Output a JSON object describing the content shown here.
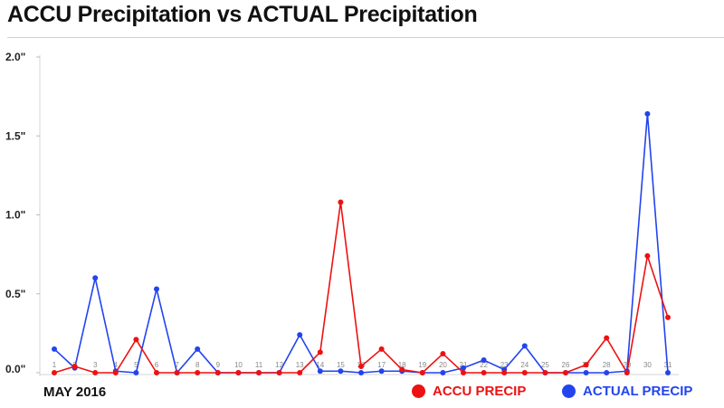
{
  "chart_data": {
    "type": "line",
    "title": "ACCU Precipitation vs ACTUAL Precipitation",
    "xlabel": "MAY 2016",
    "ylabel": "",
    "x": [
      1,
      2,
      3,
      4,
      5,
      6,
      7,
      8,
      9,
      10,
      11,
      12,
      13,
      14,
      15,
      16,
      17,
      18,
      19,
      20,
      21,
      22,
      23,
      24,
      25,
      26,
      27,
      28,
      29,
      30,
      31
    ],
    "ylim": [
      0,
      2.0
    ],
    "yticks": [
      {
        "value": 0.0,
        "label": "0.0\""
      },
      {
        "value": 0.5,
        "label": "0.5\""
      },
      {
        "value": 1.0,
        "label": "1.0\""
      },
      {
        "value": 1.5,
        "label": "1.5\""
      },
      {
        "value": 2.0,
        "label": "2.0\""
      }
    ],
    "grid": false,
    "legend_position": "bottom-right",
    "series": [
      {
        "name": "ACCU PRECIP",
        "color": "#ee1111",
        "values": [
          0,
          0.04,
          0,
          0,
          0.21,
          0,
          0,
          0,
          0,
          0,
          0,
          0,
          0,
          0.13,
          1.08,
          0.04,
          0.15,
          0.02,
          0,
          0.12,
          0,
          0,
          0,
          0,
          0,
          0,
          0.05,
          0.22,
          0,
          0.74,
          0.35
        ]
      },
      {
        "name": "ACTUAL PRECIP",
        "color": "#2244ee",
        "values": [
          0.15,
          0.03,
          0.6,
          0.01,
          0,
          0.53,
          0,
          0.15,
          0,
          0,
          0,
          0,
          0.24,
          0.01,
          0.01,
          0,
          0.01,
          0.01,
          0,
          0,
          0.03,
          0.08,
          0.02,
          0.17,
          0,
          0,
          0,
          0,
          0.01,
          1.64,
          0
        ]
      }
    ]
  }
}
